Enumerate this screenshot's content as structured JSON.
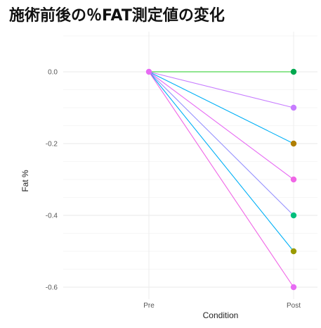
{
  "title": "施術前後の％FAT測定値の変化",
  "chart_data": {
    "type": "line",
    "xlabel": "Condition",
    "ylabel": "Fat %",
    "categories": [
      "Pre",
      "Post"
    ],
    "ylim": [
      -0.6,
      0.0
    ],
    "yticks": [
      "0.0",
      "-0.2",
      "-0.4",
      "-0.6"
    ],
    "ytick_values": [
      0.0,
      -0.2,
      -0.4,
      -0.6
    ],
    "grid": true,
    "series": [
      {
        "values": [
          0.0,
          0.0
        ],
        "color": "#22cc22"
      },
      {
        "values": [
          0.0,
          -0.1
        ],
        "color": "#c77cff"
      },
      {
        "values": [
          0.0,
          -0.2
        ],
        "color": "#00b0f6"
      },
      {
        "values": [
          0.0,
          -0.3
        ],
        "color": "#e76bf3"
      },
      {
        "values": [
          0.0,
          -0.4
        ],
        "color": "#9590ff"
      },
      {
        "values": [
          0.0,
          -0.5
        ],
        "color": "#00b0f6"
      },
      {
        "values": [
          0.0,
          -0.6
        ],
        "color": "#f066e6"
      }
    ],
    "points": [
      {
        "x": "Pre",
        "y": 0.0,
        "color": "#e76bf3"
      },
      {
        "x": "Post",
        "y": 0.0,
        "color": "#00a84f"
      },
      {
        "x": "Post",
        "y": -0.1,
        "color": "#c77cff"
      },
      {
        "x": "Post",
        "y": -0.2,
        "color": "#b07f00"
      },
      {
        "x": "Post",
        "y": -0.3,
        "color": "#f066e6"
      },
      {
        "x": "Post",
        "y": -0.4,
        "color": "#00bf7d"
      },
      {
        "x": "Post",
        "y": -0.5,
        "color": "#9a9a00"
      },
      {
        "x": "Post",
        "y": -0.6,
        "color": "#e76bf3"
      }
    ]
  }
}
